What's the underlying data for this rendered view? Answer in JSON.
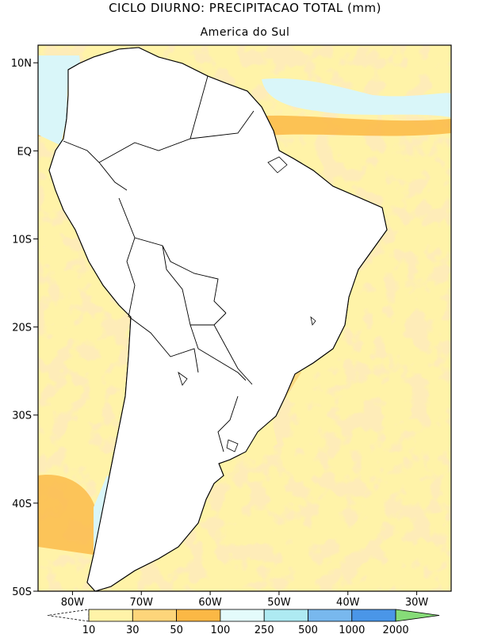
{
  "title": "CICLO DIURNO: PRECIPITACAO TOTAL (mm)",
  "subtitle": "America do Sul",
  "map": {
    "lon_range": [
      -85,
      -25
    ],
    "lat_range": [
      -50,
      12
    ],
    "lon_ticks": [
      {
        "value": -80,
        "label": "80W"
      },
      {
        "value": -70,
        "label": "70W"
      },
      {
        "value": -60,
        "label": "60W"
      },
      {
        "value": -50,
        "label": "50W"
      },
      {
        "value": -40,
        "label": "40W"
      },
      {
        "value": -30,
        "label": "30W"
      }
    ],
    "lat_ticks": [
      {
        "value": 10,
        "label": "10N"
      },
      {
        "value": 0,
        "label": "EQ"
      },
      {
        "value": -10,
        "label": "10S"
      },
      {
        "value": -20,
        "label": "20S"
      },
      {
        "value": -30,
        "label": "30S"
      },
      {
        "value": -40,
        "label": "40S"
      },
      {
        "value": -50,
        "label": "50S"
      }
    ]
  },
  "colorbar": {
    "boundaries": [
      "10",
      "30",
      "50",
      "100",
      "250",
      "500",
      "1000",
      "2000"
    ],
    "colors": [
      "#ffffff",
      "#fff3a8",
      "#fdd57a",
      "#fbb845",
      "#e4fbfb",
      "#aeeaf2",
      "#78b8ee",
      "#4a96e8",
      "#86dc78"
    ]
  },
  "colors": {
    "ocean_light": "#fff3a8",
    "ocean_medium": "#fdd57a",
    "high_orange": "#fbb845",
    "very_high_cyan": "#d9f6f9",
    "low_white": "#ffffff",
    "coast": "#000000"
  }
}
